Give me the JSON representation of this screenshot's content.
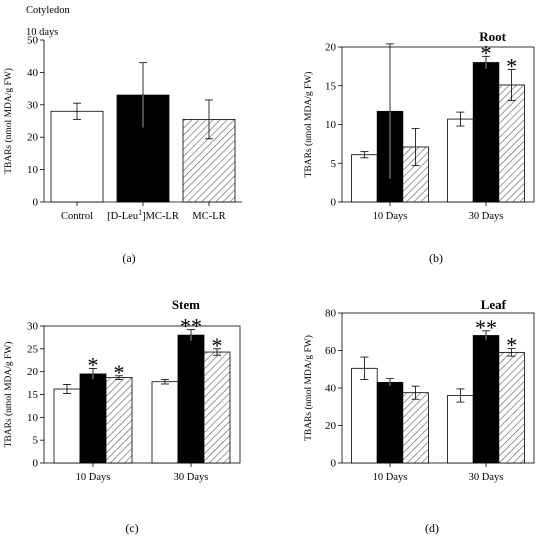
{
  "figure": {
    "panel_labels": [
      "(a)",
      "(b)",
      "(c)",
      "(d)"
    ]
  },
  "chart_data": [
    {
      "type": "bar",
      "panel": "(a)",
      "title": "Cotyledon",
      "subtitle": "10 days",
      "ylabel": "TBARs (nmol MDA/g FW)",
      "xlabel": "",
      "ylim": [
        0,
        50
      ],
      "yticks": [
        0,
        10,
        20,
        30,
        40,
        50
      ],
      "categories": [
        "Control",
        "[D-Leu1]MC-LR",
        "MC-LR"
      ],
      "series": [
        {
          "pattern": "white",
          "values": [
            28,
            33,
            25.5
          ],
          "errors": [
            2.5,
            10,
            6
          ]
        }
      ],
      "annotations": []
    },
    {
      "type": "bar",
      "panel": "(b)",
      "title": "Root",
      "ylabel": "TBARs (nmol MDA/g FW)",
      "xlabel": "",
      "ylim": [
        0,
        20
      ],
      "yticks": [
        0,
        5,
        10,
        15,
        20
      ],
      "categories": [
        "10 Days",
        "30 Days"
      ],
      "series": [
        {
          "pattern": "white",
          "values": [
            6.1,
            10.7
          ],
          "errors": [
            0.4,
            0.9
          ]
        },
        {
          "pattern": "black",
          "values": [
            11.7,
            18
          ],
          "errors": [
            8.7,
            0.8
          ]
        },
        {
          "pattern": "hatch",
          "values": [
            7.1,
            15.1
          ],
          "errors": [
            2.4,
            2
          ]
        }
      ],
      "annotations": [
        {
          "category": 1,
          "series": 1,
          "text": "*"
        },
        {
          "category": 1,
          "series": 2,
          "text": "*"
        }
      ]
    },
    {
      "type": "bar",
      "panel": "(c)",
      "title": "Stem",
      "ylabel": "TBARs (nmol MDA/g FW)",
      "xlabel": "",
      "ylim": [
        0,
        30
      ],
      "yticks": [
        0,
        5,
        10,
        15,
        20,
        25,
        30
      ],
      "categories": [
        "10 Days",
        "30 Days"
      ],
      "series": [
        {
          "pattern": "white",
          "values": [
            16.2,
            17.8
          ],
          "errors": [
            1,
            0.5
          ]
        },
        {
          "pattern": "black",
          "values": [
            19.5,
            28
          ],
          "errors": [
            1.2,
            1.2
          ]
        },
        {
          "pattern": "hatch",
          "values": [
            18.7,
            24.3
          ],
          "errors": [
            0.4,
            0.7
          ]
        }
      ],
      "annotations": [
        {
          "category": 0,
          "series": 1,
          "text": "*"
        },
        {
          "category": 0,
          "series": 2,
          "text": "*"
        },
        {
          "category": 1,
          "series": 1,
          "text": "**"
        },
        {
          "category": 1,
          "series": 2,
          "text": "*"
        }
      ]
    },
    {
      "type": "bar",
      "panel": "(d)",
      "title": "Leaf",
      "ylabel": "TBARs (nmol MDA/g FW)",
      "xlabel": "",
      "ylim": [
        0,
        80
      ],
      "yticks": [
        0,
        20,
        40,
        60,
        80
      ],
      "categories": [
        "10 Days",
        "30 Days"
      ],
      "series": [
        {
          "pattern": "white",
          "values": [
            50.5,
            36
          ],
          "errors": [
            6,
            3.5
          ]
        },
        {
          "pattern": "black",
          "values": [
            43,
            68
          ],
          "errors": [
            2,
            2.5
          ]
        },
        {
          "pattern": "hatch",
          "values": [
            37.5,
            59
          ],
          "errors": [
            3.5,
            2
          ]
        }
      ],
      "annotations": [
        {
          "category": 1,
          "series": 1,
          "text": "**"
        },
        {
          "category": 1,
          "series": 2,
          "text": "*"
        }
      ]
    }
  ]
}
